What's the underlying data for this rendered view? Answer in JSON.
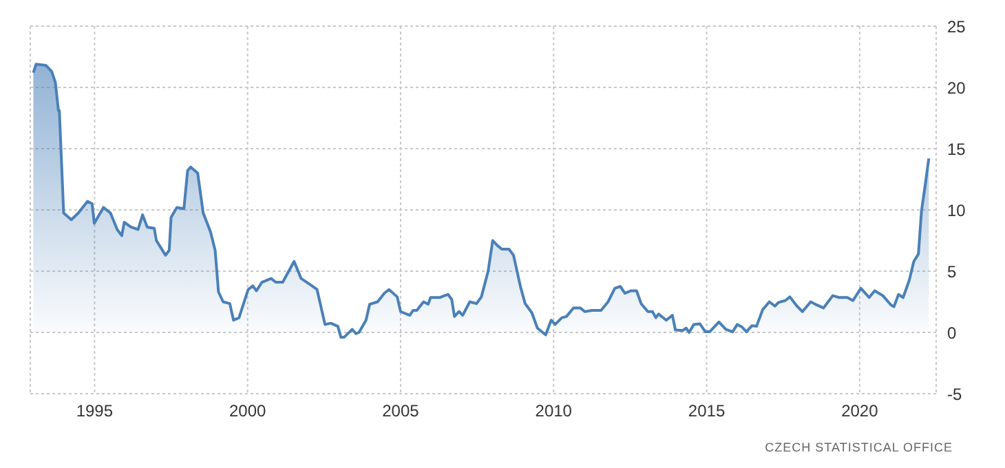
{
  "chart_data": {
    "type": "area",
    "x": [
      1993.0,
      1993.09,
      1993.41,
      1993.6,
      1993.72,
      1993.82,
      1993.85,
      1993.99,
      1994.24,
      1994.47,
      1994.77,
      1994.92,
      1994.99,
      1995.29,
      1995.52,
      1995.74,
      1995.89,
      1995.97,
      1996.19,
      1996.42,
      1996.57,
      1996.72,
      1996.95,
      1997.02,
      1997.32,
      1997.44,
      1997.5,
      1997.69,
      1997.92,
      1998.04,
      1998.14,
      1998.37,
      1998.55,
      1998.79,
      1998.94,
      1999.05,
      1999.2,
      1999.42,
      1999.54,
      1999.72,
      2000.02,
      2000.17,
      2000.29,
      2000.47,
      2000.77,
      2000.92,
      2001.15,
      2001.52,
      2001.75,
      2002.05,
      2002.27,
      2002.53,
      2002.72,
      2002.95,
      2003.05,
      2003.15,
      2003.42,
      2003.54,
      2003.64,
      2003.87,
      2003.99,
      2004.25,
      2004.47,
      2004.62,
      2004.89,
      2005.0,
      2005.3,
      2005.41,
      2005.53,
      2005.75,
      2005.9,
      2005.98,
      2006.28,
      2006.43,
      2006.55,
      2006.67,
      2006.76,
      2006.91,
      2007.03,
      2007.26,
      2007.48,
      2007.64,
      2007.86,
      2008.01,
      2008.16,
      2008.31,
      2008.54,
      2008.69,
      2008.92,
      2009.07,
      2009.29,
      2009.47,
      2009.74,
      2009.92,
      2010.05,
      2010.27,
      2010.42,
      2010.65,
      2010.87,
      2011.02,
      2011.25,
      2011.55,
      2011.78,
      2012.0,
      2012.18,
      2012.33,
      2012.53,
      2012.71,
      2012.86,
      2013.08,
      2013.23,
      2013.34,
      2013.43,
      2013.68,
      2013.88,
      2013.98,
      2014.21,
      2014.33,
      2014.43,
      2014.58,
      2014.78,
      2014.96,
      2015.1,
      2015.4,
      2015.63,
      2015.85,
      2016.0,
      2016.15,
      2016.3,
      2016.48,
      2016.63,
      2016.83,
      2017.05,
      2017.23,
      2017.35,
      2017.57,
      2017.72,
      2017.95,
      2018.13,
      2018.4,
      2018.55,
      2018.82,
      2019.12,
      2019.33,
      2019.6,
      2019.78,
      2020.04,
      2020.31,
      2020.49,
      2020.76,
      2021.02,
      2021.12,
      2021.27,
      2021.42,
      2021.62,
      2021.77,
      2021.92,
      2022.02,
      2022.14,
      2022.26
    ],
    "series": [
      {
        "color": "#4a80b8",
        "values": [
          21.2,
          21.9,
          21.8,
          21.3,
          20.4,
          18.1,
          18.1,
          9.75,
          9.2,
          9.75,
          10.7,
          10.5,
          8.9,
          10.2,
          9.75,
          8.4,
          7.9,
          9.0,
          8.6,
          8.4,
          9.6,
          8.6,
          8.5,
          7.5,
          6.3,
          6.7,
          9.4,
          10.2,
          10.1,
          13.2,
          13.5,
          13.0,
          9.75,
          8.2,
          6.7,
          3.3,
          2.5,
          2.35,
          1.0,
          1.2,
          3.5,
          3.8,
          3.4,
          4.1,
          4.4,
          4.1,
          4.1,
          5.8,
          4.4,
          3.9,
          3.5,
          0.65,
          0.75,
          0.5,
          -0.4,
          -0.4,
          0.25,
          -0.1,
          0,
          1.0,
          2.3,
          2.5,
          3.2,
          3.5,
          2.9,
          1.7,
          1.4,
          1.8,
          1.8,
          2.5,
          2.3,
          2.85,
          2.85,
          3.0,
          3.1,
          2.7,
          1.3,
          1.7,
          1.4,
          2.5,
          2.35,
          2.9,
          5.0,
          7.5,
          7.1,
          6.8,
          6.8,
          6.3,
          3.7,
          2.35,
          1.6,
          0.35,
          -0.2,
          1.0,
          0.65,
          1.2,
          1.3,
          2.0,
          2.0,
          1.7,
          1.8,
          1.8,
          2.5,
          3.6,
          3.75,
          3.2,
          3.4,
          3.4,
          2.35,
          1.7,
          1.7,
          1.2,
          1.5,
          1.0,
          1.4,
          0.2,
          0.15,
          0.35,
          0,
          0.65,
          0.7,
          0.05,
          0.05,
          0.85,
          0.25,
          0.05,
          0.65,
          0.45,
          0.05,
          0.55,
          0.5,
          1.85,
          2.5,
          2.15,
          2.45,
          2.6,
          2.9,
          2.15,
          1.7,
          2.5,
          2.3,
          2.0,
          3.0,
          2.85,
          2.85,
          2.6,
          3.6,
          2.85,
          3.4,
          3.0,
          2.25,
          2.1,
          3.1,
          2.85,
          4.25,
          5.8,
          6.4,
          9.9,
          12.0,
          14.2
        ]
      }
    ],
    "xlim": [
      1992.9,
      2022.5
    ],
    "xticks": [
      1995,
      2000,
      2005,
      2010,
      2015,
      2020
    ],
    "ylim": [
      -5,
      25
    ],
    "yticks": [
      -5,
      0,
      5,
      10,
      15,
      20,
      25
    ],
    "grid": true,
    "annotations": [
      "CZECH STATISTICAL OFFICE"
    ]
  }
}
